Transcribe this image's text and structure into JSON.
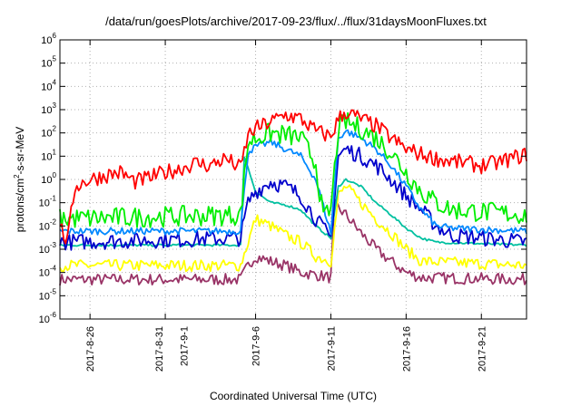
{
  "chart_data": {
    "type": "line",
    "title": "/data/run/goesPlots/archive/2017-09-23/flux/../flux/31daysMoonFluxes.txt",
    "xlabel": "Coordinated Universal Time (UTC)",
    "ylabel_parts": [
      "protons/cm",
      "2",
      "-s-sr-MeV"
    ],
    "y_scale": "log",
    "ylim": [
      1e-06,
      1000000.0
    ],
    "xlim": [
      "2017-08-24",
      "2017-09-24"
    ],
    "grid": true,
    "legend": "none",
    "y_ticks": [
      {
        "base": "10",
        "exp": "-6",
        "value": 1e-06
      },
      {
        "base": "10",
        "exp": "-5",
        "value": 1e-05
      },
      {
        "base": "10",
        "exp": "-4",
        "value": 0.0001
      },
      {
        "base": "10",
        "exp": "-3",
        "value": 0.001
      },
      {
        "base": "10",
        "exp": "-2",
        "value": 0.01
      },
      {
        "base": "10",
        "exp": "-1",
        "value": 0.1
      },
      {
        "base": "10",
        "exp": "0",
        "value": 1
      },
      {
        "base": "10",
        "exp": "1",
        "value": 10
      },
      {
        "base": "10",
        "exp": "2",
        "value": 100
      },
      {
        "base": "10",
        "exp": "3",
        "value": 1000
      },
      {
        "base": "10",
        "exp": "4",
        "value": 10000
      },
      {
        "base": "10",
        "exp": "5",
        "value": 100000
      },
      {
        "base": "10",
        "exp": "6",
        "value": 1000000
      }
    ],
    "x_ticks": [
      {
        "label": "2017-8-26",
        "date": "2017-08-26"
      },
      {
        "label": "2017-8-31",
        "label2": "2017-9-1",
        "date": "2017-08-31",
        "date2": "2017-09-01"
      },
      {
        "label": "2017-9-6",
        "date": "2017-09-06"
      },
      {
        "label": "2017-9-11",
        "date": "2017-09-11"
      },
      {
        "label": "2017-9-16",
        "date": "2017-09-16"
      },
      {
        "label": "2017-9-21",
        "date": "2017-09-21"
      }
    ],
    "series": [
      {
        "color": "#ff0000",
        "noise": 0.35,
        "points": [
          [
            "2017-08-24",
            0.01
          ],
          [
            "2017-08-24T12:00",
            0.002
          ],
          [
            "2017-08-25",
            0.5
          ],
          [
            "2017-08-26",
            1
          ],
          [
            "2017-08-27",
            1.5
          ],
          [
            "2017-08-28",
            2
          ],
          [
            "2017-08-29",
            0.8
          ],
          [
            "2017-08-30",
            1.2
          ],
          [
            "2017-08-31",
            2
          ],
          [
            "2017-09-01",
            3
          ],
          [
            "2017-09-02",
            5
          ],
          [
            "2017-09-03",
            4
          ],
          [
            "2017-09-04",
            8
          ],
          [
            "2017-09-05",
            3
          ],
          [
            "2017-09-05T12:00",
            80
          ],
          [
            "2017-09-06",
            150
          ],
          [
            "2017-09-07",
            300
          ],
          [
            "2017-09-08",
            600
          ],
          [
            "2017-09-09",
            400
          ],
          [
            "2017-09-10",
            120
          ],
          [
            "2017-09-11",
            70
          ],
          [
            "2017-09-11T12:00",
            400
          ],
          [
            "2017-09-12",
            800
          ],
          [
            "2017-09-13",
            400
          ],
          [
            "2017-09-14",
            200
          ],
          [
            "2017-09-15",
            60
          ],
          [
            "2017-09-16",
            20
          ],
          [
            "2017-09-17",
            12
          ],
          [
            "2017-09-18",
            8
          ],
          [
            "2017-09-19",
            6
          ],
          [
            "2017-09-20",
            5
          ],
          [
            "2017-09-21",
            4
          ],
          [
            "2017-09-22",
            5
          ],
          [
            "2017-09-23",
            8
          ],
          [
            "2017-09-24",
            12
          ]
        ]
      },
      {
        "color": "#00ee00",
        "noise": 0.45,
        "points": [
          [
            "2017-08-24",
            0.02
          ],
          [
            "2017-09-05",
            0.03
          ],
          [
            "2017-09-05T12:00",
            40
          ],
          [
            "2017-09-06",
            60
          ],
          [
            "2017-09-07",
            100
          ],
          [
            "2017-09-08",
            80
          ],
          [
            "2017-09-09",
            60
          ],
          [
            "2017-09-10",
            5
          ],
          [
            "2017-09-10T12:00",
            0.02
          ],
          [
            "2017-09-11",
            0.05
          ],
          [
            "2017-09-11T12:00",
            150
          ],
          [
            "2017-09-12",
            300
          ],
          [
            "2017-09-13",
            150
          ],
          [
            "2017-09-14",
            60
          ],
          [
            "2017-09-15",
            15
          ],
          [
            "2017-09-16",
            2
          ],
          [
            "2017-09-17",
            0.3
          ],
          [
            "2017-09-18",
            0.1
          ],
          [
            "2017-09-19",
            0.05
          ],
          [
            "2017-09-24",
            0.03
          ]
        ]
      },
      {
        "color": "#0088ff",
        "noise": 0.15,
        "points": [
          [
            "2017-08-24",
            0.006
          ],
          [
            "2017-09-05",
            0.006
          ],
          [
            "2017-09-05T12:00",
            15
          ],
          [
            "2017-09-06",
            25
          ],
          [
            "2017-09-07",
            40
          ],
          [
            "2017-09-08",
            20
          ],
          [
            "2017-09-09",
            10
          ],
          [
            "2017-09-10",
            1
          ],
          [
            "2017-09-11",
            0.005
          ],
          [
            "2017-09-11T12:00",
            60
          ],
          [
            "2017-09-12",
            120
          ],
          [
            "2017-09-13",
            60
          ],
          [
            "2017-09-14",
            20
          ],
          [
            "2017-09-15",
            4
          ],
          [
            "2017-09-16",
            0.5
          ],
          [
            "2017-09-17",
            0.05
          ],
          [
            "2017-09-18",
            0.01
          ],
          [
            "2017-09-19",
            0.008
          ],
          [
            "2017-09-24",
            0.006
          ]
        ]
      },
      {
        "color": "#0000cc",
        "noise": 0.35,
        "points": [
          [
            "2017-08-24",
            0.002
          ],
          [
            "2017-09-05",
            0.003
          ],
          [
            "2017-09-05T12:00",
            0.1
          ],
          [
            "2017-09-06",
            0.3
          ],
          [
            "2017-09-07",
            0.8
          ],
          [
            "2017-09-08",
            0.5
          ],
          [
            "2017-09-09",
            0.2
          ],
          [
            "2017-09-10",
            0.02
          ],
          [
            "2017-09-11",
            0.003
          ],
          [
            "2017-09-11T12:00",
            10
          ],
          [
            "2017-09-12",
            20
          ],
          [
            "2017-09-13",
            10
          ],
          [
            "2017-09-14",
            4
          ],
          [
            "2017-09-15",
            1
          ],
          [
            "2017-09-16",
            0.2
          ],
          [
            "2017-09-17",
            0.05
          ],
          [
            "2017-09-18",
            0.01
          ],
          [
            "2017-09-19",
            0.004
          ],
          [
            "2017-09-24",
            0.002
          ]
        ]
      },
      {
        "color": "#00c0a0",
        "noise": 0.05,
        "points": [
          [
            "2017-08-24",
            0.0015
          ],
          [
            "2017-09-05",
            0.0015
          ],
          [
            "2017-09-05T06:00",
            10
          ],
          [
            "2017-09-06",
            0.3
          ],
          [
            "2017-09-07",
            0.1
          ],
          [
            "2017-09-08",
            0.08
          ],
          [
            "2017-09-09",
            0.05
          ],
          [
            "2017-09-10",
            0.01
          ],
          [
            "2017-09-11",
            0.003
          ],
          [
            "2017-09-11T12:00",
            0.5
          ],
          [
            "2017-09-12",
            1
          ],
          [
            "2017-09-13",
            0.5
          ],
          [
            "2017-09-14",
            0.1
          ],
          [
            "2017-09-15",
            0.03
          ],
          [
            "2017-09-16",
            0.008
          ],
          [
            "2017-09-17",
            0.003
          ],
          [
            "2017-09-18",
            0.002
          ],
          [
            "2017-09-24",
            0.0015
          ]
        ]
      },
      {
        "color": "#ffff00",
        "noise": 0.25,
        "points": [
          [
            "2017-08-24",
            0.0002
          ],
          [
            "2017-09-05",
            0.0002
          ],
          [
            "2017-09-05T12:00",
            0.002
          ],
          [
            "2017-09-06",
            0.02
          ],
          [
            "2017-09-07",
            0.01
          ],
          [
            "2017-09-08",
            0.004
          ],
          [
            "2017-09-09",
            0.002
          ],
          [
            "2017-09-10",
            0.0005
          ],
          [
            "2017-09-11",
            0.0003
          ],
          [
            "2017-09-11T12:00",
            0.2
          ],
          [
            "2017-09-12",
            0.5
          ],
          [
            "2017-09-13",
            0.1
          ],
          [
            "2017-09-14",
            0.02
          ],
          [
            "2017-09-15",
            0.005
          ],
          [
            "2017-09-16",
            0.001
          ],
          [
            "2017-09-17",
            0.0003
          ],
          [
            "2017-09-24",
            0.0002
          ]
        ]
      },
      {
        "color": "#993366",
        "noise": 0.25,
        "points": [
          [
            "2017-08-24",
            5e-05
          ],
          [
            "2017-09-05",
            5e-05
          ],
          [
            "2017-09-05T12:00",
            0.0002
          ],
          [
            "2017-09-06",
            0.0005
          ],
          [
            "2017-09-07",
            0.0003
          ],
          [
            "2017-09-08",
            0.0002
          ],
          [
            "2017-09-09",
            0.0001
          ],
          [
            "2017-09-10",
            8e-05
          ],
          [
            "2017-09-11",
            6e-05
          ],
          [
            "2017-09-11T06:00",
            0.08
          ],
          [
            "2017-09-12",
            0.03
          ],
          [
            "2017-09-13",
            0.005
          ],
          [
            "2017-09-14",
            0.001
          ],
          [
            "2017-09-15",
            0.0003
          ],
          [
            "2017-09-16",
            0.0001
          ],
          [
            "2017-09-17",
            6e-05
          ],
          [
            "2017-09-24",
            5e-05
          ]
        ]
      }
    ]
  }
}
